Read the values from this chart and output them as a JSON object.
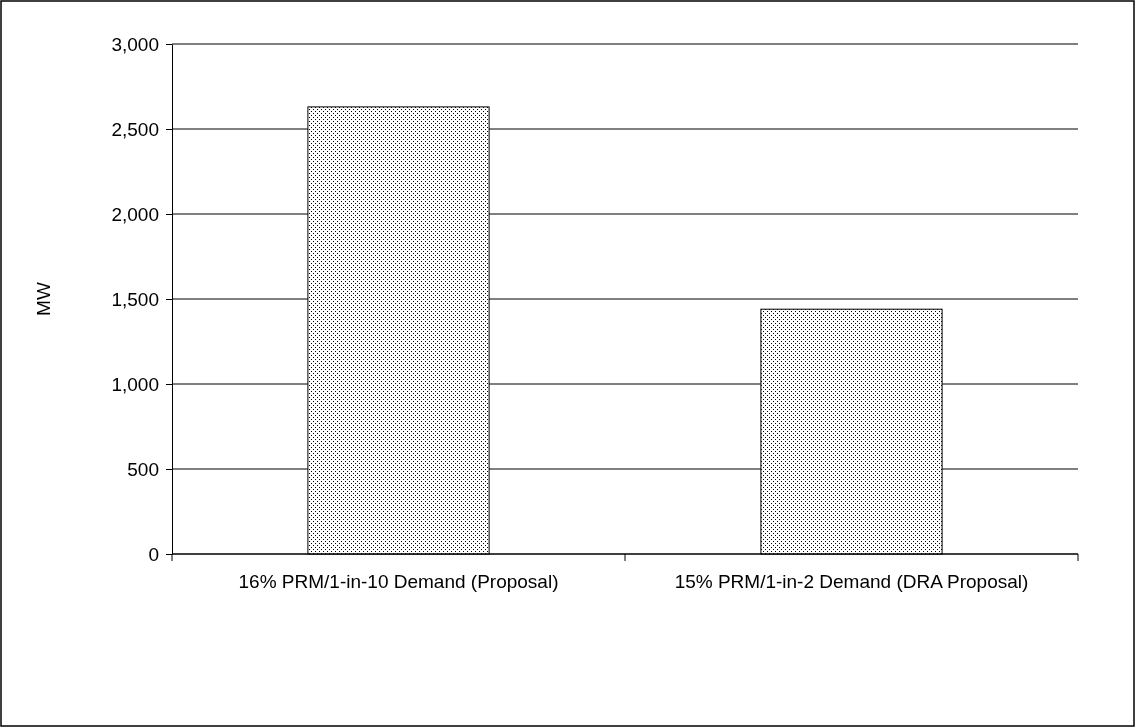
{
  "chart_data": {
    "type": "bar",
    "ylabel": "MW",
    "categories": [
      "16% PRM/1-in-10 Demand (Proposal)",
      "15% PRM/1-in-2 Demand (DRA Proposal)"
    ],
    "values": [
      2630,
      1440
    ],
    "color": "#000000",
    "ylim": [
      0,
      3000
    ],
    "yticks": [
      {
        "value": 0,
        "label": "0"
      },
      {
        "value": 500,
        "label": "500"
      },
      {
        "value": 1000,
        "label": "1,000"
      },
      {
        "value": 1500,
        "label": "1,500"
      },
      {
        "value": 2000,
        "label": "2,000"
      },
      {
        "value": 2500,
        "label": "2,500"
      },
      {
        "value": 3000,
        "label": "3,000"
      }
    ],
    "grid": "y"
  }
}
